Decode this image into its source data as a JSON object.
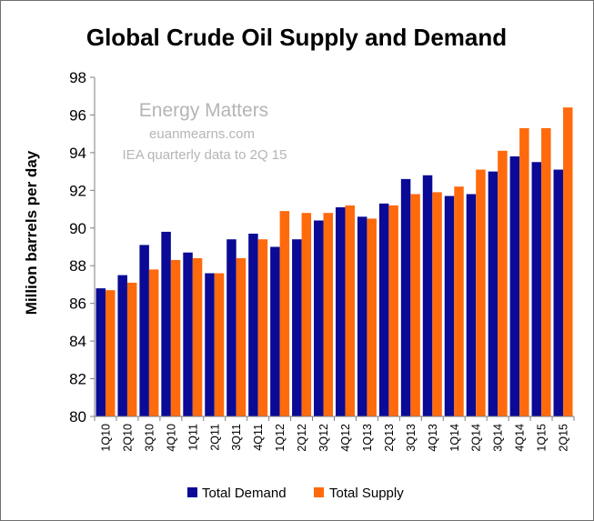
{
  "chart_data": {
    "type": "bar",
    "title": "Global Crude Oil Supply and Demand",
    "ylabel": "Million barrels per day",
    "xlabel": "",
    "ylim": [
      80,
      98
    ],
    "yticks": [
      80,
      82,
      84,
      86,
      88,
      90,
      92,
      94,
      96,
      98
    ],
    "grid": false,
    "legend_position": "bottom",
    "categories": [
      "1Q10",
      "2Q10",
      "3Q10",
      "4Q10",
      "1Q11",
      "2Q11",
      "3Q11",
      "4Q11",
      "1Q12",
      "2Q12",
      "3Q12",
      "4Q12",
      "1Q13",
      "2Q13",
      "3Q13",
      "4Q13",
      "1Q14",
      "2Q14",
      "3Q14",
      "4Q14",
      "1Q15",
      "2Q15"
    ],
    "series": [
      {
        "name": "Total Demand",
        "color": "#0a0a96",
        "values": [
          86.8,
          87.5,
          89.1,
          89.8,
          88.7,
          87.6,
          89.4,
          89.7,
          89.0,
          89.4,
          90.4,
          91.1,
          90.6,
          91.3,
          92.6,
          92.8,
          91.7,
          91.8,
          93.0,
          93.8,
          93.5,
          93.1
        ]
      },
      {
        "name": "Total Supply",
        "color": "#ff6a0d",
        "values": [
          86.7,
          87.1,
          87.8,
          88.3,
          88.4,
          87.6,
          88.4,
          89.4,
          90.9,
          90.8,
          90.8,
          91.2,
          90.5,
          91.2,
          91.8,
          91.9,
          92.2,
          93.1,
          94.1,
          95.3,
          95.3,
          96.4
        ]
      }
    ],
    "annotations": [
      "Energy Matters",
      "euanmearns.com",
      "IEA quarterly data to 2Q 15"
    ]
  }
}
